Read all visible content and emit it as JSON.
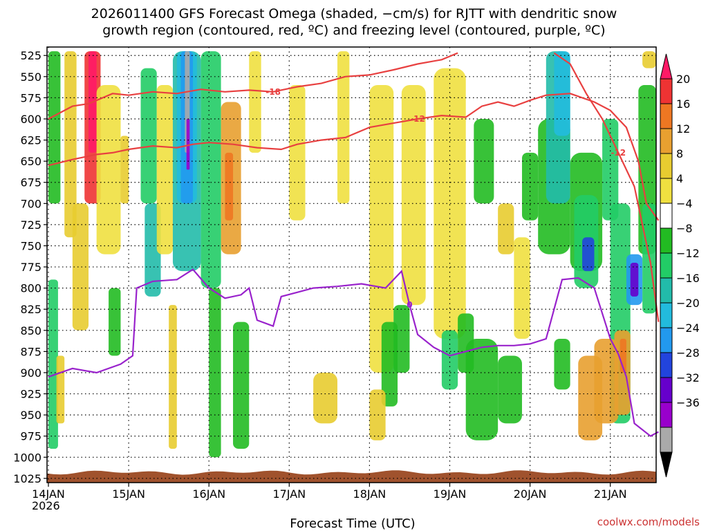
{
  "chart_data": {
    "type": "heatmap",
    "title": "2026011400 GFS Forecast Omega (shaded, −cm/s) for RJTT with dendritic snow",
    "subtitle": "growth region (contoured, red, ºC) and freezing level (contoured, purple, ºC)",
    "xlabel": "Forecast Time (UTC)",
    "ylabel": "",
    "credit": "coolwx.com/models",
    "x_ticks": [
      "14JAN",
      "15JAN",
      "16JAN",
      "17JAN",
      "18JAN",
      "19JAN",
      "20JAN",
      "21JAN"
    ],
    "x_year": "2026",
    "x_range_days": [
      0,
      7.6
    ],
    "y_ticks": [
      525,
      550,
      575,
      600,
      625,
      650,
      675,
      700,
      725,
      750,
      775,
      800,
      825,
      850,
      875,
      900,
      925,
      950,
      975,
      1000,
      1025
    ],
    "y_range_hpa": [
      515,
      1030
    ],
    "grid": true,
    "colorbar": {
      "labels": [
        "20",
        "16",
        "12",
        "8",
        "4",
        "−4",
        "−8",
        "−12",
        "−16",
        "−20",
        "−24",
        "−28",
        "−32",
        "−36"
      ],
      "colors": [
        "#ff1a66",
        "#ee3333",
        "#ee7722",
        "#e8a030",
        "#e8cc30",
        "#f0e040",
        "#ffffff",
        "#22bb22",
        "#22cc66",
        "#22bbaa",
        "#22bbdd",
        "#2299ee",
        "#2244dd",
        "#6600cc",
        "#9900cc",
        "#aaaaaa",
        "#000000"
      ]
    },
    "series": [
      {
        "name": "-12",
        "color": "#e84040",
        "points": [
          [
            0,
            655
          ],
          [
            0.3,
            648
          ],
          [
            0.6,
            642
          ],
          [
            0.8,
            640
          ],
          [
            1.0,
            636
          ],
          [
            1.3,
            632
          ],
          [
            1.6,
            634
          ],
          [
            1.8,
            630
          ],
          [
            2.0,
            628
          ],
          [
            2.3,
            630
          ],
          [
            2.6,
            634
          ],
          [
            2.9,
            636
          ],
          [
            3.1,
            630
          ],
          [
            3.4,
            625
          ],
          [
            3.7,
            622
          ],
          [
            4.0,
            610
          ],
          [
            4.3,
            605
          ],
          [
            4.6,
            600
          ],
          [
            4.9,
            596
          ],
          [
            5.2,
            598
          ],
          [
            5.4,
            585
          ],
          [
            5.6,
            580
          ],
          [
            5.8,
            585
          ],
          [
            6.0,
            578
          ],
          [
            6.2,
            572
          ],
          [
            6.5,
            570
          ],
          [
            6.8,
            580
          ],
          [
            7.0,
            590
          ],
          [
            7.2,
            610
          ],
          [
            7.35,
            650
          ],
          [
            7.45,
            700
          ],
          [
            7.6,
            720
          ]
        ]
      },
      {
        "name": "-18",
        "color": "#e84040",
        "points": [
          [
            0,
            600
          ],
          [
            0.3,
            585
          ],
          [
            0.5,
            582
          ],
          [
            0.8,
            570
          ],
          [
            1.0,
            572
          ],
          [
            1.3,
            568
          ],
          [
            1.6,
            570
          ],
          [
            1.9,
            565
          ],
          [
            2.2,
            568
          ],
          [
            2.5,
            566
          ],
          [
            2.8,
            568
          ],
          [
            3.1,
            562
          ],
          [
            3.4,
            558
          ],
          [
            3.7,
            550
          ],
          [
            4.0,
            548
          ],
          [
            4.3,
            542
          ],
          [
            4.6,
            535
          ],
          [
            4.9,
            530
          ],
          [
            5.1,
            522
          ]
        ]
      },
      {
        "name": "-12",
        "color": "#e84040",
        "points": [
          [
            6.3,
            522
          ],
          [
            6.5,
            535
          ],
          [
            6.7,
            570
          ],
          [
            6.9,
            600
          ],
          [
            7.1,
            640
          ],
          [
            7.3,
            680
          ],
          [
            7.5,
            770
          ],
          [
            7.6,
            840
          ]
        ]
      },
      {
        "name": "0",
        "color": "#9922cc",
        "points": [
          [
            0,
            905
          ],
          [
            0.3,
            895
          ],
          [
            0.6,
            900
          ],
          [
            0.9,
            890
          ],
          [
            1.05,
            880
          ],
          [
            1.1,
            800
          ],
          [
            1.3,
            792
          ],
          [
            1.6,
            790
          ],
          [
            1.8,
            778
          ],
          [
            2.0,
            800
          ],
          [
            2.2,
            812
          ],
          [
            2.4,
            808
          ],
          [
            2.5,
            800
          ],
          [
            2.6,
            838
          ],
          [
            2.8,
            845
          ],
          [
            2.9,
            810
          ],
          [
            3.1,
            805
          ],
          [
            3.3,
            800
          ],
          [
            3.6,
            798
          ],
          [
            3.9,
            795
          ],
          [
            4.2,
            800
          ],
          [
            4.4,
            780
          ],
          [
            4.5,
            820
          ],
          [
            4.6,
            855
          ],
          [
            4.8,
            870
          ],
          [
            5.0,
            880
          ],
          [
            5.2,
            875
          ],
          [
            5.4,
            870
          ],
          [
            5.6,
            868
          ],
          [
            5.8,
            868
          ],
          [
            6.0,
            866
          ],
          [
            6.2,
            860
          ],
          [
            6.4,
            790
          ],
          [
            6.6,
            788
          ],
          [
            6.8,
            800
          ],
          [
            7.0,
            860
          ],
          [
            7.1,
            878
          ],
          [
            7.2,
            905
          ],
          [
            7.3,
            960
          ],
          [
            7.5,
            975
          ],
          [
            7.6,
            970
          ]
        ]
      }
    ]
  }
}
